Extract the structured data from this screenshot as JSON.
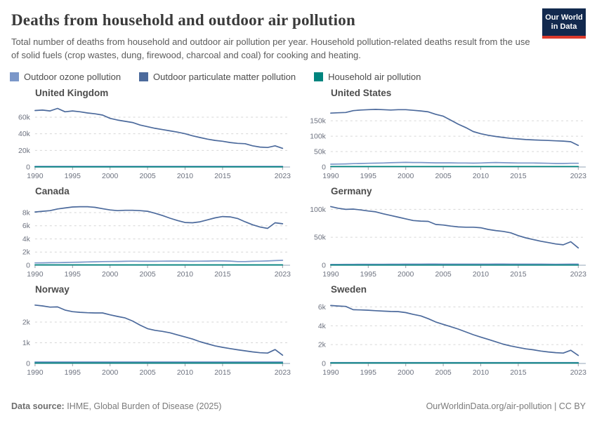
{
  "header": {
    "title": "Deaths from household and outdoor air pollution",
    "subtitle": "Total number of deaths from household and outdoor air pollution per year. Household pollution-related deaths result from the use of solid fuels (crop wastes, dung, firewood, charcoal and coal) for cooking and heating.",
    "logo_line1": "Our World",
    "logo_line2": "in Data",
    "logo_bg_color": "#12294e",
    "logo_accent_color": "#dc3a2c"
  },
  "legend": [
    {
      "key": "ozone",
      "label": "Outdoor ozone pollution",
      "color": "#7b97c9"
    },
    {
      "key": "pm",
      "label": "Outdoor particulate matter pollution",
      "color": "#4c6a9c"
    },
    {
      "key": "household",
      "label": "Household air pollution",
      "color": "#00847e"
    }
  ],
  "chart_data": {
    "type": "line",
    "values_unit": "thousand deaths per year",
    "x_label": "year",
    "x": [
      1990,
      1991,
      1992,
      1993,
      1994,
      1995,
      1996,
      1997,
      1998,
      1999,
      2000,
      2001,
      2002,
      2003,
      2004,
      2005,
      2006,
      2007,
      2008,
      2009,
      2010,
      2011,
      2012,
      2013,
      2014,
      2015,
      2016,
      2017,
      2018,
      2019,
      2020,
      2021,
      2022,
      2023
    ],
    "x_ticks": [
      1990,
      1995,
      2000,
      2005,
      2010,
      2015,
      2023
    ],
    "x_domain": [
      1990,
      2024
    ],
    "grid": "dashed horizontal",
    "legend_position": "top",
    "panels": [
      {
        "title": "United Kingdom",
        "ylim": [
          0,
          76
        ],
        "y_ticks": [
          0,
          20,
          40,
          60
        ],
        "series": {
          "pm": [
            68,
            68.5,
            67.5,
            70.5,
            66.5,
            67.5,
            66.5,
            65,
            64,
            62.5,
            58.5,
            56.5,
            55,
            53.5,
            50.5,
            48.5,
            46.5,
            45,
            43.5,
            42,
            40,
            37.5,
            35.5,
            33.5,
            32,
            31,
            29.5,
            28.5,
            28,
            25.5,
            24,
            23.5,
            25.5,
            22.5
          ],
          "ozone": [
            0.8,
            0.8,
            0.8,
            0.8,
            0.8,
            0.8,
            0.8,
            0.8,
            0.8,
            0.8,
            0.8,
            0.8,
            0.8,
            0.8,
            0.8,
            0.8,
            0.8,
            0.8,
            0.8,
            0.8,
            0.8,
            0.8,
            0.8,
            0.8,
            0.8,
            0.8,
            0.8,
            0.8,
            0.8,
            0.8,
            0.8,
            0.8,
            0.8,
            0.8
          ],
          "household": [
            0.2,
            0.2,
            0.2,
            0.2,
            0.2,
            0.2,
            0.2,
            0.2,
            0.2,
            0.2,
            0.2,
            0.2,
            0.2,
            0.2,
            0.2,
            0.2,
            0.2,
            0.2,
            0.2,
            0.2,
            0.2,
            0.2,
            0.2,
            0.2,
            0.2,
            0.2,
            0.2,
            0.2,
            0.2,
            0.2,
            0.2,
            0.2,
            0.2,
            0.2
          ]
        }
      },
      {
        "title": "United States",
        "ylim": [
          0,
          205
        ],
        "y_ticks": [
          0,
          50,
          100,
          150
        ],
        "series": {
          "pm": [
            175,
            176,
            177,
            183,
            185,
            186,
            187,
            186,
            185,
            186,
            186,
            184,
            182,
            179,
            171,
            165,
            152,
            139,
            128,
            115,
            108,
            103,
            99,
            96,
            93,
            91,
            89,
            88,
            87,
            86,
            85,
            84,
            82,
            70
          ],
          "ozone": [
            9,
            9.5,
            10,
            11,
            11.5,
            12,
            12.5,
            13,
            14,
            14.5,
            15,
            14.5,
            14.5,
            14,
            13.5,
            13.5,
            13.5,
            13,
            13,
            12.5,
            13,
            14,
            14.5,
            14,
            13.5,
            13,
            13,
            13,
            12.5,
            12,
            11.5,
            11.5,
            12,
            12
          ],
          "household": [
            1.5,
            1.5,
            1.5,
            1.5,
            1.5,
            1.5,
            1.5,
            1.5,
            1.5,
            1.5,
            1.5,
            1.5,
            1.5,
            1.5,
            1.5,
            1.5,
            1.5,
            1.5,
            1.5,
            1.5,
            1.5,
            1.5,
            1.5,
            1.5,
            1.5,
            1.5,
            1.5,
            1.5,
            1.5,
            1.5,
            1.5,
            1.5,
            1.5,
            1.5
          ]
        }
      },
      {
        "title": "Canada",
        "ylim": [
          0,
          9.6
        ],
        "y_ticks": [
          0,
          2,
          4,
          6,
          8
        ],
        "series": {
          "pm": [
            8.1,
            8.2,
            8.3,
            8.55,
            8.7,
            8.85,
            8.9,
            8.9,
            8.8,
            8.6,
            8.4,
            8.3,
            8.35,
            8.35,
            8.3,
            8.2,
            7.9,
            7.55,
            7.15,
            6.8,
            6.5,
            6.45,
            6.6,
            6.9,
            7.2,
            7.4,
            7.35,
            7.1,
            6.6,
            6.15,
            5.8,
            5.6,
            6.45,
            6.3
          ],
          "ozone": [
            0.35,
            0.36,
            0.38,
            0.4,
            0.42,
            0.45,
            0.47,
            0.5,
            0.52,
            0.55,
            0.57,
            0.58,
            0.6,
            0.62,
            0.6,
            0.6,
            0.6,
            0.62,
            0.63,
            0.63,
            0.62,
            0.6,
            0.62,
            0.63,
            0.65,
            0.65,
            0.63,
            0.55,
            0.55,
            0.6,
            0.62,
            0.65,
            0.7,
            0.75
          ],
          "household": [
            0.05,
            0.05,
            0.05,
            0.05,
            0.05,
            0.05,
            0.05,
            0.05,
            0.05,
            0.05,
            0.05,
            0.05,
            0.05,
            0.05,
            0.05,
            0.05,
            0.05,
            0.05,
            0.05,
            0.05,
            0.05,
            0.05,
            0.05,
            0.05,
            0.05,
            0.05,
            0.05,
            0.05,
            0.05,
            0.05,
            0.05,
            0.05,
            0.05,
            0.05
          ]
        }
      },
      {
        "title": "Germany",
        "ylim": [
          0,
          113
        ],
        "y_ticks": [
          0,
          50,
          100
        ],
        "series": {
          "pm": [
            105,
            102,
            100,
            100.5,
            99,
            97,
            95.5,
            92,
            89,
            86,
            83,
            80,
            79,
            78.5,
            73,
            72,
            70,
            68.5,
            68,
            68,
            67,
            64,
            62,
            60.5,
            58,
            53,
            49,
            46,
            43,
            40.5,
            38,
            36.5,
            42,
            31
          ],
          "ozone": [
            1.5,
            1.5,
            1.6,
            1.6,
            1.7,
            1.7,
            1.8,
            1.8,
            1.9,
            1.9,
            2,
            2,
            2.1,
            2.2,
            2.2,
            2.1,
            2.1,
            2.1,
            2.1,
            2,
            2,
            2.1,
            2.2,
            2.2,
            2.1,
            2.1,
            2,
            2,
            2,
            1.9,
            1.8,
            1.9,
            2,
            2
          ],
          "household": [
            0.4,
            0.4,
            0.4,
            0.4,
            0.4,
            0.4,
            0.4,
            0.4,
            0.4,
            0.4,
            0.4,
            0.4,
            0.4,
            0.4,
            0.4,
            0.4,
            0.4,
            0.4,
            0.4,
            0.4,
            0.4,
            0.4,
            0.4,
            0.4,
            0.4,
            0.4,
            0.4,
            0.4,
            0.4,
            0.4,
            0.4,
            0.4,
            0.4,
            0.4
          ]
        }
      },
      {
        "title": "Norway",
        "ylim": [
          0,
          3.05
        ],
        "y_ticks": [
          0,
          1,
          2
        ],
        "series": {
          "pm": [
            2.82,
            2.78,
            2.72,
            2.73,
            2.58,
            2.5,
            2.47,
            2.45,
            2.44,
            2.44,
            2.35,
            2.27,
            2.2,
            2.05,
            1.85,
            1.68,
            1.6,
            1.55,
            1.48,
            1.38,
            1.28,
            1.18,
            1.05,
            0.95,
            0.85,
            0.78,
            0.72,
            0.66,
            0.61,
            0.56,
            0.52,
            0.5,
            0.67,
            0.4
          ],
          "ozone": [
            0.07,
            0.07,
            0.07,
            0.07,
            0.07,
            0.07,
            0.07,
            0.07,
            0.07,
            0.07,
            0.07,
            0.07,
            0.07,
            0.07,
            0.07,
            0.07,
            0.07,
            0.07,
            0.07,
            0.07,
            0.07,
            0.07,
            0.07,
            0.07,
            0.07,
            0.07,
            0.07,
            0.07,
            0.07,
            0.07,
            0.07,
            0.07,
            0.07,
            0.07
          ],
          "household": [
            0.02,
            0.02,
            0.02,
            0.02,
            0.02,
            0.02,
            0.02,
            0.02,
            0.02,
            0.02,
            0.02,
            0.02,
            0.02,
            0.02,
            0.02,
            0.02,
            0.02,
            0.02,
            0.02,
            0.02,
            0.02,
            0.02,
            0.02,
            0.02,
            0.02,
            0.02,
            0.02,
            0.02,
            0.02,
            0.02,
            0.02,
            0.02,
            0.02,
            0.02
          ]
        }
      },
      {
        "title": "Sweden",
        "ylim": [
          0,
          6.7
        ],
        "y_ticks": [
          0,
          2,
          4,
          6
        ],
        "series": {
          "pm": [
            6.15,
            6.1,
            6.05,
            5.7,
            5.68,
            5.65,
            5.6,
            5.55,
            5.52,
            5.5,
            5.4,
            5.2,
            5.05,
            4.75,
            4.4,
            4.15,
            3.9,
            3.65,
            3.35,
            3.05,
            2.8,
            2.55,
            2.3,
            2.05,
            1.85,
            1.7,
            1.55,
            1.45,
            1.32,
            1.22,
            1.15,
            1.1,
            1.4,
            0.85
          ],
          "ozone": [
            0.1,
            0.1,
            0.1,
            0.1,
            0.1,
            0.1,
            0.1,
            0.1,
            0.1,
            0.1,
            0.1,
            0.1,
            0.1,
            0.1,
            0.1,
            0.1,
            0.1,
            0.1,
            0.1,
            0.1,
            0.1,
            0.1,
            0.1,
            0.1,
            0.1,
            0.1,
            0.1,
            0.1,
            0.1,
            0.1,
            0.1,
            0.1,
            0.1,
            0.1
          ],
          "household": [
            0.05,
            0.05,
            0.05,
            0.05,
            0.05,
            0.05,
            0.05,
            0.05,
            0.05,
            0.05,
            0.05,
            0.05,
            0.05,
            0.05,
            0.05,
            0.05,
            0.05,
            0.05,
            0.05,
            0.05,
            0.05,
            0.05,
            0.05,
            0.05,
            0.05,
            0.05,
            0.05,
            0.05,
            0.05,
            0.05,
            0.05,
            0.05,
            0.05,
            0.05
          ]
        }
      }
    ]
  },
  "footer": {
    "source_label": "Data source:",
    "source_text": "IHME, Global Burden of Disease (2025)",
    "right_text": "OurWorldinData.org/air-pollution | CC BY"
  }
}
